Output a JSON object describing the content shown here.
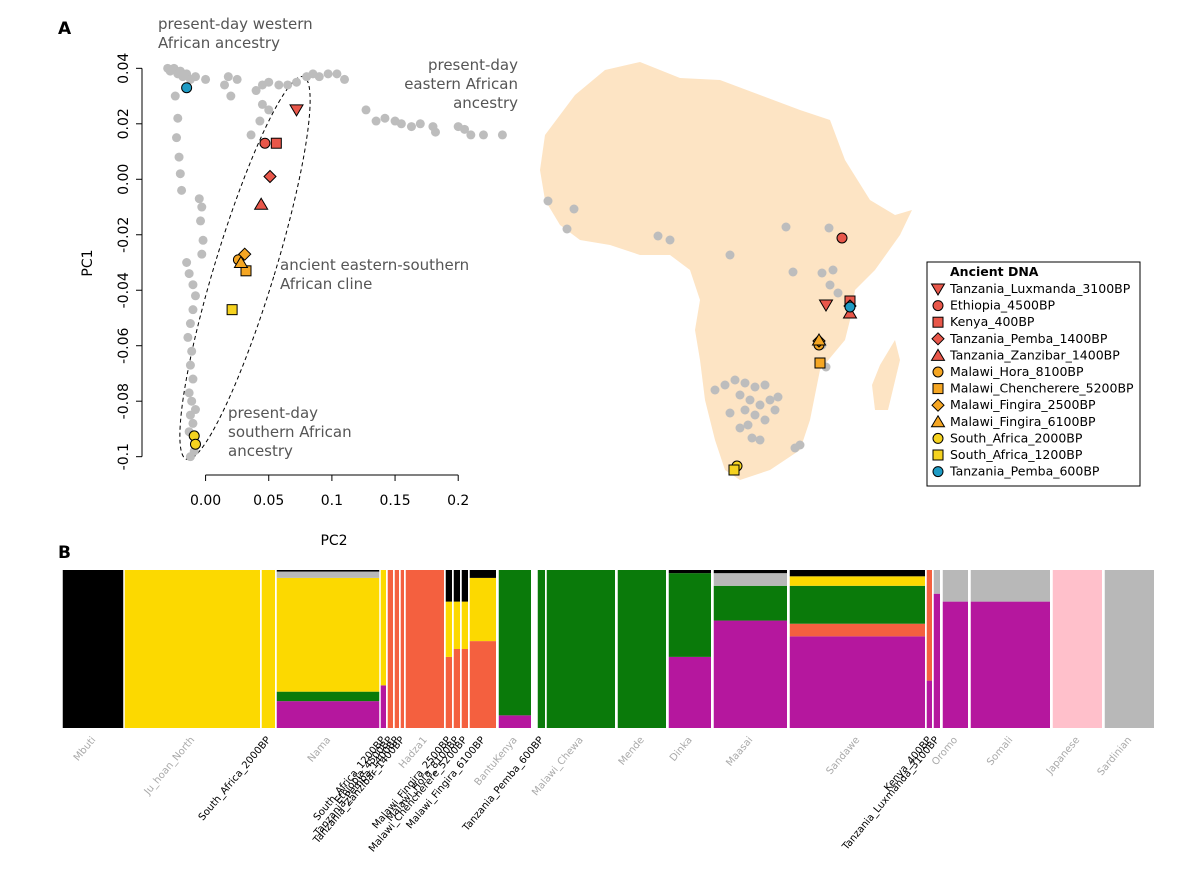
{
  "panel_a": {
    "label": "A",
    "chart_data": {
      "type": "scatter",
      "xlabel": "PC2",
      "ylabel": "PC1",
      "xlim": [
        -0.044,
        0.241
      ],
      "ylim": [
        -0.103,
        0.043
      ],
      "xticks": [
        {
          "value": 0,
          "label": "0.00"
        },
        {
          "value": 0.05,
          "label": "0.05"
        },
        0.1,
        0.15,
        0.2
      ],
      "yticks": [
        0.04,
        0.02,
        {
          "value": 0,
          "label": "0.00"
        },
        -0.02,
        -0.04,
        -0.06,
        -0.08,
        -0.1
      ],
      "reference": {
        "color": "#bdbdbd",
        "x": [
          -0.03,
          -0.028,
          -0.025,
          -0.022,
          -0.02,
          -0.018,
          -0.015,
          -0.012,
          -0.008,
          0.0,
          0.018,
          0.025,
          -0.024,
          -0.022,
          -0.023,
          -0.021,
          -0.02,
          -0.019,
          -0.005,
          -0.003,
          -0.004,
          -0.002,
          -0.003,
          -0.015,
          -0.013,
          -0.01,
          -0.008,
          -0.01,
          -0.012,
          -0.014,
          -0.011,
          -0.012,
          -0.01,
          -0.013,
          -0.011,
          -0.012,
          -0.01,
          -0.008,
          -0.013,
          -0.012,
          -0.009,
          0.015,
          0.02,
          0.045,
          0.05,
          0.043,
          0.036,
          0.04,
          0.045,
          0.05,
          0.058,
          0.065,
          0.072,
          0.08,
          0.085,
          0.09,
          0.097,
          0.104,
          0.11,
          0.127,
          0.135,
          0.142,
          0.15,
          0.155,
          0.163,
          0.17,
          0.18,
          0.182,
          0.2,
          0.205,
          0.21,
          0.22,
          0.235
        ],
        "y": [
          0.04,
          0.039,
          0.04,
          0.038,
          0.039,
          0.037,
          0.038,
          0.036,
          0.037,
          0.036,
          0.037,
          0.036,
          0.03,
          0.022,
          0.015,
          0.008,
          0.002,
          -0.004,
          -0.007,
          -0.01,
          -0.015,
          -0.022,
          -0.027,
          -0.03,
          -0.034,
          -0.038,
          -0.042,
          -0.047,
          -0.052,
          -0.057,
          -0.062,
          -0.067,
          -0.072,
          -0.077,
          -0.08,
          -0.085,
          -0.088,
          -0.083,
          -0.091,
          -0.1,
          -0.098,
          0.034,
          0.03,
          0.027,
          0.025,
          0.021,
          0.016,
          0.032,
          0.034,
          0.035,
          0.034,
          0.034,
          0.035,
          0.037,
          0.038,
          0.037,
          0.038,
          0.038,
          0.036,
          0.025,
          0.021,
          0.022,
          0.021,
          0.02,
          0.019,
          0.02,
          0.019,
          0.017,
          0.019,
          0.018,
          0.016,
          0.016,
          0.016
        ]
      },
      "legend_title": "Ancient DNA",
      "series": [
        {
          "name": "Tanzania_Luxmanda_3100BP",
          "marker": "triangle-down",
          "color": "#e8574a",
          "x": [
            0.072
          ],
          "y": [
            0.025
          ]
        },
        {
          "name": "Ethiopia_4500BP",
          "marker": "circle",
          "color": "#e8574a",
          "x": [
            0.047
          ],
          "y": [
            0.013
          ]
        },
        {
          "name": "Kenya_400BP",
          "marker": "square",
          "color": "#e8574a",
          "x": [
            0.056
          ],
          "y": [
            0.013
          ]
        },
        {
          "name": "Tanzania_Pemba_1400BP",
          "marker": "diamond",
          "color": "#e8574a",
          "x": [
            0.051
          ],
          "y": [
            0.001
          ]
        },
        {
          "name": "Tanzania_Zanzibar_1400BP",
          "marker": "triangle",
          "color": "#e8574a",
          "x": [
            0.044
          ],
          "y": [
            -0.009
          ]
        },
        {
          "name": "Malawi_Hora_8100BP",
          "marker": "circle",
          "color": "#f5a623",
          "x": [
            0.026
          ],
          "y": [
            -0.029
          ]
        },
        {
          "name": "Malawi_Chencherere_5200BP",
          "marker": "square",
          "color": "#f5a623",
          "x": [
            0.032
          ],
          "y": [
            -0.033
          ]
        },
        {
          "name": "Malawi_Fingira_2500BP",
          "marker": "diamond",
          "color": "#f5a623",
          "x": [
            0.031
          ],
          "y": [
            -0.027
          ]
        },
        {
          "name": "Malawi_Fingira_6100BP",
          "marker": "triangle",
          "color": "#f5a623",
          "x": [
            0.028
          ],
          "y": [
            -0.03
          ]
        },
        {
          "name": "South_Africa_2000BP",
          "marker": "circle",
          "color": "#f5d21f",
          "x": [
            -0.009,
            -0.008
          ],
          "y": [
            -0.0925,
            -0.0955
          ]
        },
        {
          "name": "South_Africa_1200BP",
          "marker": "square",
          "color": "#f5d21f",
          "x": [
            0.021
          ],
          "y": [
            -0.047
          ]
        },
        {
          "name": "Tanzania_Pemba_600BP",
          "marker": "circle",
          "color": "#1e9bc4",
          "x": [
            -0.015
          ],
          "y": [
            0.033
          ]
        }
      ],
      "annotations": [
        {
          "lines": [
            "present-day western",
            "African ancestry"
          ]
        },
        {
          "lines": [
            "present-day",
            "eastern African",
            "ancestry"
          ]
        },
        {
          "lines": [
            "ancient eastern-southern",
            "African cline"
          ]
        },
        {
          "lines": [
            "present-day",
            "southern African",
            "ancestry"
          ]
        }
      ]
    }
  },
  "panel_b": {
    "label": "B",
    "chart_data": {
      "type": "admixture",
      "component_colors": [
        "#b5179e",
        "#f4603f",
        "#0a7a0a",
        "#fcd900",
        "#ffc0cb",
        "#b8b8b8",
        "#000000"
      ],
      "modern_label_color": "#aaaaaa",
      "ancient_label_color": "#000000",
      "groups": [
        {
          "label": "Mbuti",
          "ancient": false,
          "values": [
            0,
            0,
            0,
            0,
            0,
            0,
            1
          ]
        },
        {
          "label": "Ju_hoan_North",
          "ancient": false,
          "values": [
            0,
            0,
            0,
            1,
            0,
            0,
            0
          ]
        },
        {
          "label": "South_Africa_2000BP",
          "ancient": true,
          "values": [
            0,
            0,
            0,
            1,
            0,
            0,
            0
          ]
        },
        {
          "label": "Nama",
          "ancient": false,
          "values": [
            0.17,
            0,
            0.06,
            0.72,
            0,
            0.04,
            0.01
          ]
        },
        {
          "label": "South_Africa_1200BP",
          "ancient": true,
          "values": [
            0.27,
            0,
            0,
            0.73,
            0,
            0,
            0
          ]
        },
        {
          "label": "Ethiopia_4500BP",
          "ancient": true,
          "values": [
            0,
            1,
            0,
            0,
            0,
            0,
            0
          ]
        },
        {
          "label": "Tanzania_Pemba_1400BP",
          "ancient": true,
          "values": [
            0,
            1,
            0,
            0,
            0,
            0,
            0
          ]
        },
        {
          "label": "Tanzania_Zanzibar_1400BP",
          "ancient": true,
          "values": [
            0,
            1,
            0,
            0,
            0,
            0,
            0
          ]
        },
        {
          "label": "Hadza1",
          "ancient": false,
          "values": [
            0,
            1,
            0,
            0,
            0,
            0,
            0
          ]
        },
        {
          "label": "Malawi_Fingira_2500BP",
          "ancient": true,
          "values": [
            0,
            0.45,
            0,
            0.35,
            0,
            0,
            0.2
          ]
        },
        {
          "label": "Malawi_Hora_8100BP",
          "ancient": true,
          "values": [
            0,
            0.5,
            0,
            0.3,
            0,
            0,
            0.2
          ]
        },
        {
          "label": "Malawi_Chencherere_5200BP",
          "ancient": true,
          "values": [
            0,
            0.5,
            0,
            0.3,
            0,
            0,
            0.2
          ]
        },
        {
          "label": "Malawi_Fingira_6100BP",
          "ancient": true,
          "values": [
            0,
            0.55,
            0,
            0.4,
            0,
            0,
            0.05
          ]
        },
        {
          "label": "BantuKenya",
          "ancient": false,
          "values": [
            0.08,
            0,
            0.92,
            0,
            0,
            0,
            0
          ]
        },
        {
          "label": "Tanzania_Pemba_600BP",
          "ancient": true,
          "values": [
            0,
            0,
            1,
            0,
            0,
            0,
            0
          ]
        },
        {
          "label": "Malawi_Chewa",
          "ancient": false,
          "values": [
            0,
            0,
            1,
            0,
            0,
            0,
            0
          ]
        },
        {
          "label": "Mende",
          "ancient": false,
          "values": [
            0,
            0,
            1,
            0,
            0,
            0,
            0
          ]
        },
        {
          "label": "Dinka",
          "ancient": false,
          "values": [
            0.45,
            0,
            0.53,
            0,
            0,
            0,
            0.02
          ]
        },
        {
          "label": "Maasai",
          "ancient": false,
          "values": [
            0.68,
            0,
            0.22,
            0,
            0,
            0.08,
            0.02
          ]
        },
        {
          "label": "Sandawe",
          "ancient": false,
          "values": [
            0.58,
            0.08,
            0.24,
            0.06,
            0,
            0,
            0.04
          ]
        },
        {
          "label": "Kenya_400BP",
          "ancient": true,
          "values": [
            0.3,
            0.7,
            0,
            0,
            0,
            0,
            0
          ]
        },
        {
          "label": "Tanzania_Luxmanda_3100BP",
          "ancient": true,
          "values": [
            0.85,
            0,
            0,
            0,
            0,
            0.15,
            0
          ]
        },
        {
          "label": "Oromo",
          "ancient": false,
          "values": [
            0.8,
            0,
            0,
            0,
            0,
            0.2,
            0
          ]
        },
        {
          "label": "Somali",
          "ancient": false,
          "values": [
            0.8,
            0,
            0,
            0,
            0,
            0.2,
            0
          ]
        },
        {
          "label": "Japanese",
          "ancient": false,
          "values": [
            0,
            0,
            0,
            0,
            1,
            0,
            0
          ]
        },
        {
          "label": "Sardinian",
          "ancient": false,
          "values": [
            0,
            0,
            0,
            0,
            0,
            1,
            0
          ]
        }
      ]
    }
  }
}
